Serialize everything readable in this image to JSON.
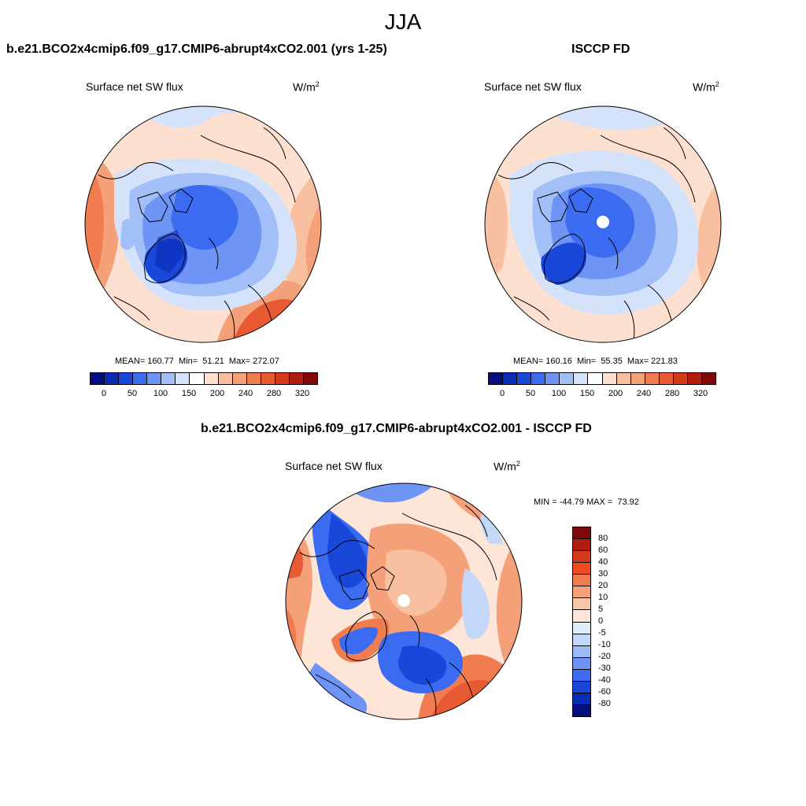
{
  "season": "JJA",
  "units_main": "W/m",
  "units_sup": "2",
  "panel_left": {
    "title": "b.e21.BCO2x4cmip6.f09_g17.CMIP6-abrupt4xCO2.001 (yrs 1-25)",
    "subtitle": "Surface net SW flux",
    "stats": "MEAN= 160.77  Min=  51.21  Max= 272.07",
    "mean": 160.77,
    "min": 51.21,
    "max": 272.07
  },
  "panel_right": {
    "title": "ISCCP FD",
    "subtitle": "Surface net SW flux",
    "stats": "MEAN= 160.16  Min=  55.35  Max= 221.83",
    "mean": 160.16,
    "min": 55.35,
    "max": 221.83
  },
  "panel_diff": {
    "title": "b.e21.BCO2x4cmip6.f09_g17.CMIP6-abrupt4xCO2.001 - ISCCP FD",
    "subtitle": "Surface net SW flux",
    "stats": "MIN = -44.79 MAX =  73.92",
    "min": -44.79,
    "max": 73.92
  },
  "colorbar_main": {
    "labels": [
      "0",
      "50",
      "100",
      "150",
      "200",
      "240",
      "280",
      "320"
    ],
    "colors": [
      "#050f80",
      "#0a2bb3",
      "#1847d9",
      "#3a6bf0",
      "#6e95f5",
      "#a3bff8",
      "#d4e2fa",
      "#ffffff",
      "#fde0cf",
      "#f8c0a0",
      "#f4a078",
      "#f07c50",
      "#e85a32",
      "#d4391c",
      "#b01d0f",
      "#800808"
    ]
  },
  "colorbar_diff": {
    "labels": [
      "80",
      "60",
      "40",
      "30",
      "20",
      "10",
      "5",
      "0",
      "-5",
      "-10",
      "-20",
      "-30",
      "-40",
      "-60",
      "-80"
    ],
    "colors": [
      "#800808",
      "#b01d0f",
      "#d4391c",
      "#f04a20",
      "#f07c50",
      "#f4a078",
      "#f8c6a8",
      "#fde6d8",
      "#e0ecfa",
      "#c3d7f8",
      "#9bbaf6",
      "#6e95f5",
      "#3a6bf0",
      "#1847d9",
      "#0a2bb3",
      "#050f80"
    ]
  }
}
